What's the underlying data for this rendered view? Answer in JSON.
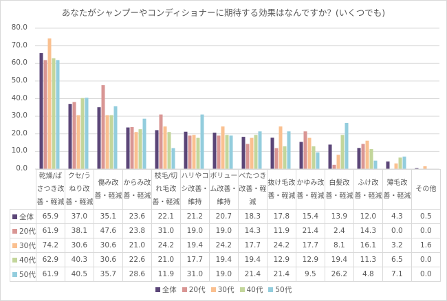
{
  "chart_data": {
    "type": "bar",
    "title": "あなたがシャンプーやコンディショナーに期待する効果はなんですか？(いくつでも)",
    "xlabel": "",
    "ylabel": "",
    "ylim": [
      0,
      80
    ],
    "yticks": [
      "80.0",
      "70.0",
      "60.0",
      "50.0",
      "40.0",
      "30.0",
      "20.0",
      "10.0",
      "0.0"
    ],
    "ytick_values": [
      80,
      70,
      60,
      50,
      40,
      30,
      20,
      10,
      0
    ],
    "grid": true,
    "legend_position": "bottom",
    "categories": [
      [
        "乾燥/ぱ",
        "さつき改",
        "善・軽減"
      ],
      [
        "クセ/う",
        "ねり改",
        "善・軽減"
      ],
      [
        "傷み改",
        "善・軽減"
      ],
      [
        "からみ改",
        "善・軽減"
      ],
      [
        "枝毛/切",
        "れ毛改",
        "善・軽減"
      ],
      [
        "ハリやコ",
        "シ改善・",
        "維持"
      ],
      [
        "ボリュー",
        "ム改善・",
        "維持"
      ],
      [
        "べたつき",
        "改善・軽",
        "減"
      ],
      [
        "抜け毛改",
        "善・軽減"
      ],
      [
        "かゆみ改",
        "善・軽減"
      ],
      [
        "白髪改",
        "善・軽減"
      ],
      [
        "ふけ改",
        "善・軽減"
      ],
      [
        "薄毛改",
        "善・軽減"
      ],
      [
        "その他"
      ]
    ],
    "series": [
      {
        "name": "全体",
        "color": "#5b4678",
        "values": [
          65.9,
          37.0,
          35.1,
          23.6,
          22.1,
          21.2,
          20.7,
          18.3,
          17.8,
          15.4,
          13.9,
          12.0,
          4.3,
          0.5
        ],
        "labels": [
          "65.9",
          "37.0",
          "35.1",
          "23.6",
          "22.1",
          "21.2",
          "20.7",
          "18.3",
          "17.8",
          "15.4",
          "13.9",
          "12.0",
          "4.3",
          "0.5"
        ]
      },
      {
        "name": "20代",
        "color": "#d99694",
        "values": [
          61.9,
          38.1,
          47.6,
          23.8,
          31.0,
          19.0,
          19.0,
          14.3,
          11.9,
          21.4,
          2.4,
          14.3,
          0.0,
          0.0
        ],
        "labels": [
          "61.9",
          "38.1",
          "47.6",
          "23.8",
          "31.0",
          "19.0",
          "19.0",
          "14.3",
          "11.9",
          "21.4",
          "2.4",
          "14.3",
          "0.0",
          "0.0"
        ]
      },
      {
        "name": "30代",
        "color": "#fac090",
        "values": [
          74.2,
          30.6,
          30.6,
          21.0,
          24.2,
          19.4,
          24.2,
          17.7,
          24.2,
          17.7,
          8.1,
          16.1,
          3.2,
          1.6
        ],
        "labels": [
          "74.2",
          "30.6",
          "30.6",
          "21.0",
          "24.2",
          "19.4",
          "24.2",
          "17.7",
          "24.2",
          "17.7",
          "8.1",
          "16.1",
          "3.2",
          "1.6"
        ]
      },
      {
        "name": "40代",
        "color": "#c3d69b",
        "values": [
          62.9,
          40.3,
          30.6,
          22.6,
          21.0,
          17.7,
          19.4,
          19.4,
          12.9,
          12.9,
          19.4,
          11.3,
          6.5,
          0.0
        ],
        "labels": [
          "62.9",
          "40.3",
          "30.6",
          "22.6",
          "21.0",
          "17.7",
          "19.4",
          "19.4",
          "12.9",
          "12.9",
          "19.4",
          "11.3",
          "6.5",
          "0.0"
        ]
      },
      {
        "name": "50代",
        "color": "#93cddd",
        "values": [
          61.9,
          40.5,
          35.7,
          28.6,
          11.9,
          31.0,
          19.0,
          21.4,
          21.4,
          9.5,
          26.2,
          4.8,
          7.1,
          0.0
        ],
        "labels": [
          "61.9",
          "40.5",
          "35.7",
          "28.6",
          "11.9",
          "31.0",
          "19.0",
          "21.4",
          "21.4",
          "9.5",
          "26.2",
          "4.8",
          "7.1",
          "0.0"
        ]
      }
    ]
  }
}
